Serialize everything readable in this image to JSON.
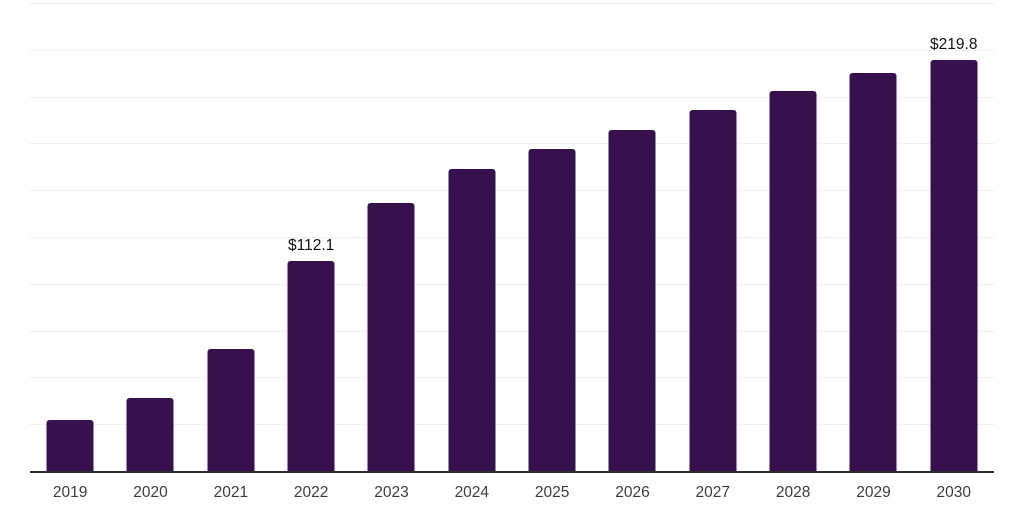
{
  "chart_data": {
    "type": "bar",
    "title": "",
    "categories": [
      "2019",
      "2020",
      "2021",
      "2022",
      "2023",
      "2024",
      "2025",
      "2026",
      "2027",
      "2028",
      "2029",
      "2030"
    ],
    "values": [
      27.0,
      39.0,
      65.0,
      112.1,
      143.4,
      161.4,
      172.1,
      182.4,
      192.7,
      203.1,
      212.4,
      219.8
    ],
    "data_labels": [
      {
        "category": "2022",
        "text": "$112.1"
      },
      {
        "category": "2030",
        "text": "$219.8"
      }
    ],
    "xlabel": "",
    "ylabel": "",
    "ylim": [
      0,
      250
    ],
    "gridline_step": 25,
    "grid": true,
    "legend": "none",
    "bar_color": "#36114d",
    "axis_line_color": "#2e2e2e",
    "gridline_color": "#efefef",
    "tick_label_color": "#3c3c3c",
    "data_label_color": "#111111",
    "background_color": "#ffffff"
  }
}
